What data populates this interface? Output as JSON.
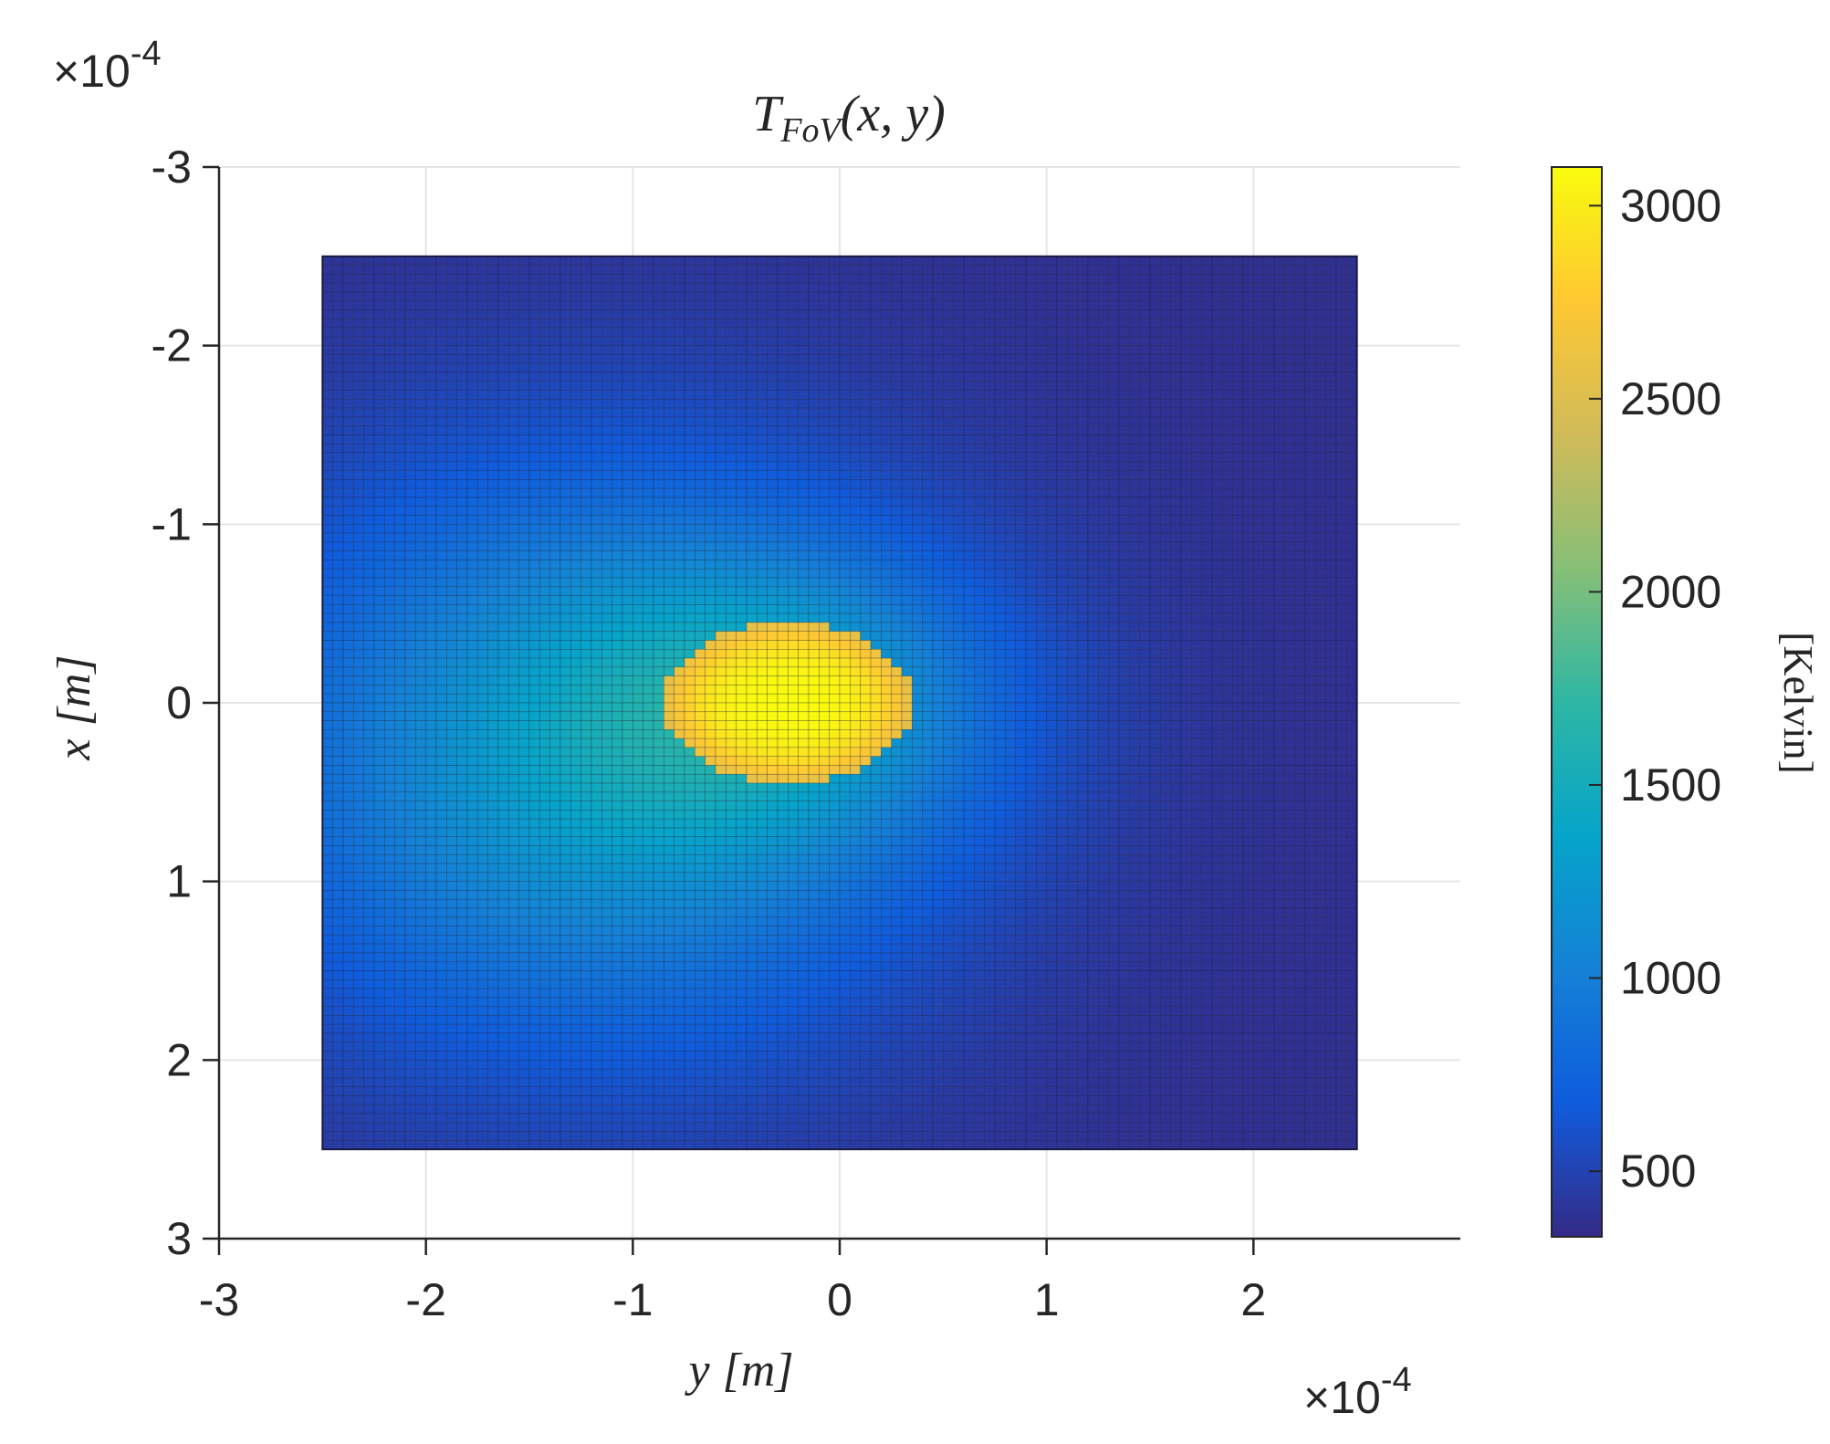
{
  "chart_data": {
    "type": "heatmap",
    "title": {
      "base": "T",
      "subscript": "FoV",
      "args": "(x, y)"
    },
    "xlabel": {
      "var": "y",
      "unit": "[m]"
    },
    "ylabel": {
      "var": "x",
      "unit": "[m]"
    },
    "x_exponent": {
      "times": "×",
      "base": "10",
      "power": "-4"
    },
    "y_exponent": {
      "times": "×",
      "base": "10",
      "power": "-4"
    },
    "xlim": [
      -3.0,
      3.0
    ],
    "ylim": [
      -3.0,
      3.0
    ],
    "y_axis_reversed": true,
    "xticks": [
      "-3",
      "-2",
      "-1",
      "0",
      "1",
      "2"
    ],
    "xtick_values": [
      -3,
      -2,
      -1,
      0,
      1,
      2
    ],
    "yticks": [
      "-3",
      "-2",
      "-1",
      "0",
      "1",
      "2",
      "3"
    ],
    "ytick_values": [
      -3,
      -2,
      -1,
      0,
      1,
      2,
      3
    ],
    "grid": true,
    "field": {
      "y_range": [
        -2.5,
        2.5
      ],
      "x_range": [
        -2.5,
        2.5
      ],
      "units": "1e-4 m",
      "background_K": 370,
      "peak_K": 3100,
      "hot_spot_center": {
        "y": -0.25,
        "x": 0.0
      },
      "hot_spot_half_width_y": 0.6,
      "hot_spot_half_width_x": 0.45,
      "hot_spot_mean_K": 2800,
      "glow_peak_K": 1300,
      "glow_center": {
        "y": -1.2,
        "x": 0.3
      }
    },
    "colorbar": {
      "label": "[Kelvin]",
      "range": [
        330,
        3100
      ],
      "ticks": [
        "500",
        "1000",
        "1500",
        "2000",
        "2500",
        "3000"
      ],
      "tick_values": [
        500,
        1000,
        1500,
        2000,
        2500,
        3000
      ],
      "colormap": "parula",
      "colormap_stops": [
        "#352a87",
        "#0f5cdd",
        "#1481d6",
        "#06a4ca",
        "#2eb7a4",
        "#87bf77",
        "#d1bb59",
        "#fec832",
        "#f9fb0e"
      ]
    }
  }
}
